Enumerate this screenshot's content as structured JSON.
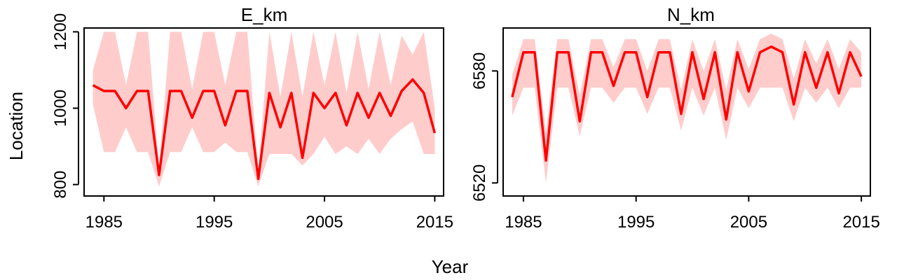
{
  "figure": {
    "shared_xlabel": "Year",
    "shared_ylabel": "Location"
  },
  "colors": {
    "line": "#ff0000",
    "band": "#ffcccc",
    "axis": "#000000",
    "background": "#ffffff"
  },
  "chart_data": [
    {
      "type": "line",
      "title": "E_km",
      "xlabel": "Year",
      "ylabel": "Location",
      "xlim": [
        1983.2,
        2015.8
      ],
      "ylim": [
        770,
        1210
      ],
      "x_ticks": [
        1985,
        1995,
        2005,
        2015
      ],
      "y_ticks": [
        800,
        1000,
        1200
      ],
      "grid": false,
      "x": [
        1984,
        1985,
        1986,
        1987,
        1988,
        1989,
        1990,
        1991,
        1992,
        1993,
        1994,
        1995,
        1996,
        1997,
        1998,
        1999,
        2000,
        2001,
        2002,
        2003,
        2004,
        2005,
        2006,
        2007,
        2008,
        2009,
        2010,
        2011,
        2012,
        2013,
        2014,
        2015
      ],
      "series": [
        {
          "kind": "estimate",
          "values": [
            1060,
            1045,
            1045,
            1000,
            1045,
            1045,
            825,
            1045,
            1045,
            975,
            1045,
            1045,
            955,
            1045,
            1045,
            815,
            1040,
            950,
            1040,
            870,
            1040,
            1000,
            1040,
            955,
            1040,
            975,
            1040,
            980,
            1045,
            1075,
            1040,
            935
          ]
        },
        {
          "kind": "interval",
          "upper": [
            1100,
            1200,
            1200,
            1060,
            1200,
            1200,
            845,
            1200,
            1200,
            1050,
            1200,
            1200,
            1060,
            1200,
            1200,
            835,
            1200,
            1030,
            1200,
            1030,
            1200,
            1060,
            1200,
            1040,
            1200,
            1050,
            1200,
            1060,
            1190,
            1140,
            1200,
            1000
          ],
          "lower": [
            1010,
            885,
            885,
            950,
            885,
            885,
            795,
            885,
            885,
            950,
            885,
            885,
            910,
            885,
            885,
            795,
            880,
            880,
            880,
            850,
            880,
            925,
            880,
            900,
            880,
            920,
            880,
            920,
            945,
            965,
            880,
            880
          ]
        }
      ]
    },
    {
      "type": "line",
      "title": "N_km",
      "xlabel": "Year",
      "ylabel": "Location",
      "xlim": [
        1983.2,
        2015.8
      ],
      "ylim": [
        6513,
        6603
      ],
      "x_ticks": [
        1985,
        1995,
        2005,
        2015
      ],
      "y_ticks": [
        6520,
        6580
      ],
      "grid": false,
      "x": [
        1984,
        1985,
        1986,
        1987,
        1988,
        1989,
        1990,
        1991,
        1992,
        1993,
        1994,
        1995,
        1996,
        1997,
        1998,
        1999,
        2000,
        2001,
        2002,
        2003,
        2004,
        2005,
        2006,
        2007,
        2008,
        2009,
        2010,
        2011,
        2012,
        2013,
        2014,
        2015
      ],
      "series": [
        {
          "kind": "estimate",
          "values": [
            6566,
            6590,
            6590,
            6532,
            6590,
            6590,
            6553,
            6590,
            6590,
            6572,
            6590,
            6590,
            6566,
            6590,
            6590,
            6557,
            6590,
            6565,
            6590,
            6554,
            6590,
            6569,
            6590,
            6593,
            6590,
            6562,
            6590,
            6571,
            6590,
            6568,
            6590,
            6577
          ]
        },
        {
          "kind": "interval",
          "upper": [
            6578,
            6597,
            6597,
            6547,
            6597,
            6597,
            6567,
            6597,
            6597,
            6582,
            6597,
            6597,
            6580,
            6597,
            6597,
            6570,
            6597,
            6580,
            6597,
            6570,
            6597,
            6581,
            6597,
            6600,
            6597,
            6576,
            6597,
            6584,
            6597,
            6581,
            6597,
            6590
          ],
          "lower": [
            6556,
            6571,
            6571,
            6520,
            6571,
            6571,
            6545,
            6571,
            6571,
            6563,
            6571,
            6571,
            6557,
            6571,
            6571,
            6548,
            6571,
            6556,
            6571,
            6543,
            6571,
            6560,
            6571,
            6571,
            6571,
            6553,
            6571,
            6563,
            6571,
            6560,
            6571,
            6571
          ]
        }
      ]
    }
  ]
}
